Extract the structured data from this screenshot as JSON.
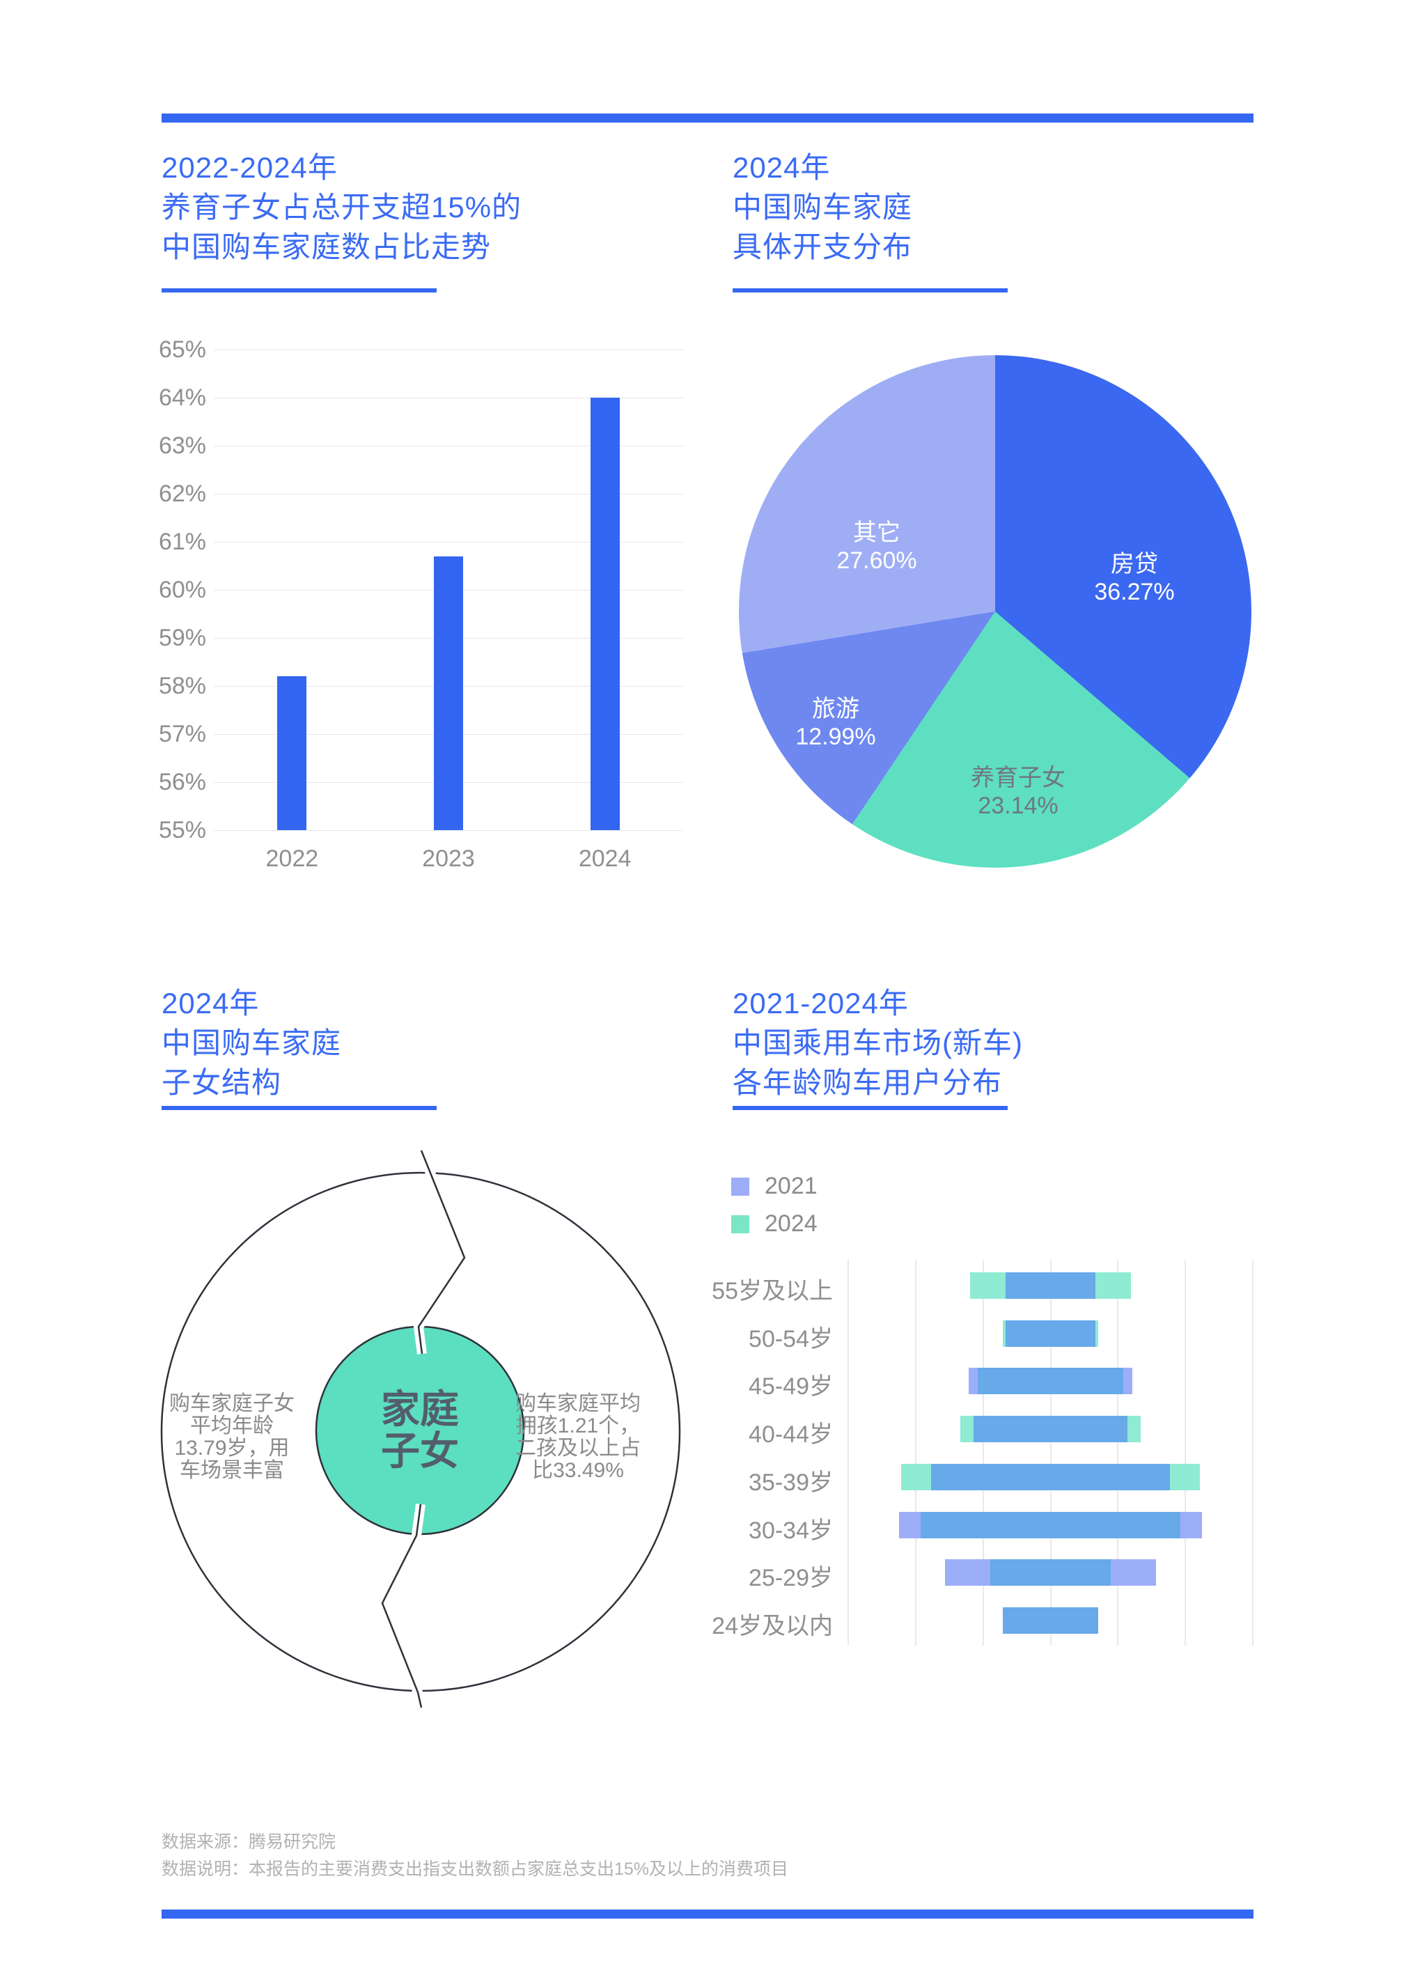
{
  "sections": [
    {
      "title_lines": [
        "2022-2024年",
        "养育子女占总开支超15%的",
        "中国购车家庭数占比走势"
      ]
    },
    {
      "title_lines": [
        "2024年",
        "中国购车家庭",
        "具体开支分布"
      ]
    },
    {
      "title_lines": [
        "2024年",
        "中国购车家庭",
        "子女结构"
      ]
    },
    {
      "title_lines": [
        "2021-2024年",
        "中国乘用车市场(新车)",
        "各年龄购车用户分布"
      ]
    }
  ],
  "colors": {
    "accent": "#3467F2",
    "title_text": "#3A6BF4",
    "bar_blue": "#3465F0",
    "grid": "#E6E6E6",
    "axis_text": "#8F8F8F",
    "overlap_blue": "#67A9E9",
    "sliver_2021": "#9DAEF8",
    "sliver_2024": "#8FEBD2",
    "legend_2021": "#9CACF7",
    "legend_2024": "#7BE6C4",
    "diagram_green": "#5CDEC0",
    "diagram_text": "#525E6B",
    "footer_text": "#B1B1B1"
  },
  "footer": {
    "source": "数据来源：腾易研究院",
    "note": "数据说明：本报告的主要消费支出指支出数额占家庭总支出15%及以上的消费项目"
  },
  "chart_data": [
    {
      "type": "bar",
      "title": "2022-2024年养育子女占总开支超15%的中国购车家庭数占比走势",
      "categories": [
        "2022",
        "2023",
        "2024"
      ],
      "values": [
        58.2,
        60.7,
        64.0
      ],
      "ylim": [
        55,
        65
      ],
      "y_tick_step": 1,
      "y_tick_suffix": "%",
      "grid": true,
      "legend_position": "none"
    },
    {
      "type": "pie",
      "title": "2024年中国购车家庭具体开支分布",
      "start_at_top_clockwise": true,
      "value_suffix": "%",
      "slices": [
        {
          "label": "房贷",
          "value": 36.27,
          "color": "#3B68F0",
          "text_color": "#FFFFFF"
        },
        {
          "label": "养育子女",
          "value": 23.14,
          "color": "#5EDFC1",
          "text_color": "#6F7780"
        },
        {
          "label": "旅游",
          "value": 12.99,
          "color": "#6F88F0",
          "text_color": "#FFFFFF"
        },
        {
          "label": "其它",
          "value": 27.6,
          "color": "#9FAEF4",
          "text_color": "#FFFFFF"
        }
      ]
    },
    {
      "type": "diagram",
      "title": "2024年中国购车家庭子女结构",
      "center_label": "家庭\n子女",
      "left_text": "购车家庭子女\n平均年龄\n13.79岁，用\n车场景丰富",
      "right_text": "购车家庭平均\n拥孩1.21个，\n二孩及以上占\n比33.49%"
    },
    {
      "type": "centered-bar",
      "title": "2021-2024年中国乘用车市场(新车)各年龄购车用户分布",
      "note": "values are relative bar widths in % of plot width; no numeric axis is shown",
      "legend": [
        {
          "label": "2021",
          "color": "#9CACF7"
        },
        {
          "label": "2024",
          "color": "#7BE6C4"
        }
      ],
      "categories": [
        "55岁及以上",
        "50-54岁",
        "45-49岁",
        "40-44岁",
        "35-39岁",
        "30-34岁",
        "25-29岁",
        "24岁及以内"
      ],
      "series": [
        {
          "name": "2021",
          "values": [
            22.2,
            22.2,
            40.3,
            37.9,
            59.2,
            74.9,
            52.0,
            23.6
          ]
        },
        {
          "name": "2024",
          "values": [
            39.6,
            23.6,
            36.0,
            44.6,
            74.0,
            64.2,
            29.8,
            23.6
          ]
        }
      ],
      "grid": true
    }
  ]
}
